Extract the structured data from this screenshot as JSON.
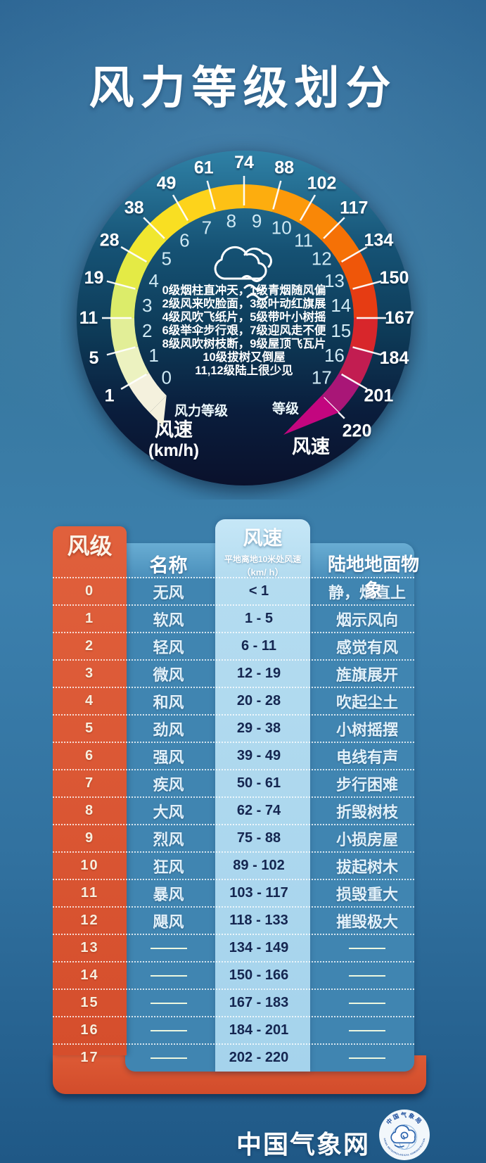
{
  "title": "风力等级划分",
  "gauge": {
    "center_note_lines": [
      "0级烟柱直冲天，1级青烟随风偏",
      "2级风来吹脸面，3级叶动红旗展",
      "4级风吹飞纸片，5级带叶小树摇",
      "6级举伞步行艰，7级迎风走不便",
      "8级风吹树枝断，9级屋顶飞瓦片",
      "10级拔树又倒屋",
      "11,12级陆上很少见"
    ],
    "labels": {
      "left_level": "风力等级",
      "left_speed": "风速",
      "left_speed_unit": "(km/h)",
      "right_level": "等级",
      "right_speed": "风速"
    },
    "arrow_color": "#c3067f"
  },
  "table": {
    "headers": {
      "level": "风级",
      "name": "名称",
      "speed": "风速",
      "speed_sub1": "平地离地10米处风速",
      "speed_sub2": "（km/ h）",
      "land": "陆地地面物象"
    },
    "placeholder": "——"
  },
  "footer": {
    "site_name": "中国气象网",
    "logo_text_top": "中国气象局",
    "logo_text_bottom": "CHINA METEOROLOGICAL ADMINISTRATION"
  },
  "colors": {
    "background_blue": "#3c80ad",
    "panel_blue": "#4085b1",
    "speed_column_blue": "#a5d3ec",
    "red_accent": "#d9502f",
    "speed_text_navy": "#152650",
    "dial_face_dark": "#0a1d3c"
  },
  "chart_data": [
    {
      "type": "gauge",
      "title": "风力等级划分",
      "unit": "km/h",
      "min": 0,
      "max": 220,
      "level_min": 0,
      "level_max": 17,
      "speed_boundaries": [
        1,
        5,
        11,
        19,
        28,
        38,
        49,
        61,
        74,
        88,
        102,
        117,
        134,
        150,
        167,
        184,
        201,
        220
      ],
      "levels": [
        0,
        1,
        2,
        3,
        4,
        5,
        6,
        7,
        8,
        9,
        10,
        11,
        12,
        13,
        14,
        15,
        16,
        17
      ],
      "segment_colors": [
        "#f4f1dd",
        "#ecf2c0",
        "#e2ee97",
        "#dcec6a",
        "#e4ea45",
        "#f0e730",
        "#f9df22",
        "#fdd31b",
        "#fdc115",
        "#fdad0e",
        "#fc990a",
        "#f98707",
        "#f57106",
        "#ef5609",
        "#e63c13",
        "#d8262b",
        "#c21d51",
        "#a91677"
      ],
      "start_angle": -135,
      "end_angle": 135
    },
    {
      "type": "table",
      "columns": [
        "风级",
        "名称",
        "风速 平地离地10米处风速（km/ h）",
        "陆地地面物象"
      ],
      "rows": [
        [
          "0",
          "无风",
          "< 1",
          "静，烟直上"
        ],
        [
          "1",
          "软风",
          "1 - 5",
          "烟示风向"
        ],
        [
          "2",
          "轻风",
          "6 - 11",
          "感觉有风"
        ],
        [
          "3",
          "微风",
          "12 - 19",
          "旌旗展开"
        ],
        [
          "4",
          "和风",
          "20 - 28",
          "吹起尘土"
        ],
        [
          "5",
          "劲风",
          "29 - 38",
          "小树摇摆"
        ],
        [
          "6",
          "强风",
          "39 - 49",
          "电线有声"
        ],
        [
          "7",
          "疾风",
          "50 - 61",
          "步行困难"
        ],
        [
          "8",
          "大风",
          "62 - 74",
          "折毁树枝"
        ],
        [
          "9",
          "烈风",
          "75 - 88",
          "小损房屋"
        ],
        [
          "10",
          "狂风",
          "89 - 102",
          "拔起树木"
        ],
        [
          "11",
          "暴风",
          "103 - 117",
          "损毁重大"
        ],
        [
          "12",
          "飓风",
          "118 - 133",
          "摧毁极大"
        ],
        [
          "13",
          "——",
          "134 - 149",
          "——"
        ],
        [
          "14",
          "——",
          "150 - 166",
          "——"
        ],
        [
          "15",
          "——",
          "167 - 183",
          "——"
        ],
        [
          "16",
          "——",
          "184 - 201",
          "——"
        ],
        [
          "17",
          "——",
          "202 - 220",
          "——"
        ]
      ]
    }
  ]
}
